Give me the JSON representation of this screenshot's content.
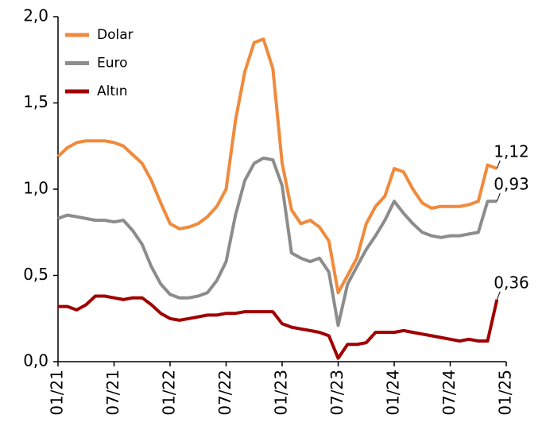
{
  "chart_data": {
    "type": "line",
    "categories": [
      "01/21",
      null,
      null,
      null,
      null,
      null,
      "07/21",
      null,
      null,
      null,
      null,
      null,
      "01/22",
      null,
      null,
      null,
      null,
      null,
      "07/22",
      null,
      null,
      null,
      null,
      null,
      "01/23",
      null,
      null,
      null,
      null,
      null,
      "07/23",
      null,
      null,
      null,
      null,
      null,
      "01/24",
      null,
      null,
      null,
      null,
      null,
      "07/24",
      null,
      null,
      null,
      null,
      null,
      "01/25"
    ],
    "series": [
      {
        "name": "Dolar",
        "color": "#f08a3c",
        "values": [
          1.19,
          1.24,
          1.27,
          1.28,
          1.28,
          1.28,
          1.27,
          1.25,
          1.2,
          1.15,
          1.05,
          0.92,
          0.8,
          0.77,
          0.78,
          0.8,
          0.84,
          0.9,
          1.0,
          1.4,
          1.68,
          1.85,
          1.87,
          1.7,
          1.15,
          0.88,
          0.8,
          0.82,
          0.78,
          0.7,
          0.4,
          0.5,
          0.6,
          0.8,
          0.9,
          0.96,
          1.12,
          1.1,
          1.0,
          0.92,
          0.89,
          0.9,
          0.9,
          0.9,
          0.91,
          0.93,
          1.14,
          1.12,
          null
        ],
        "value_labels": [
          null,
          null,
          null,
          null,
          null,
          null,
          null,
          null,
          null,
          null,
          null,
          null,
          null,
          null,
          null,
          null,
          null,
          null,
          null,
          null,
          null,
          null,
          null,
          null,
          null,
          null,
          null,
          null,
          null,
          null,
          null,
          null,
          null,
          null,
          null,
          null,
          null,
          null,
          null,
          null,
          null,
          null,
          null,
          null,
          null,
          null,
          null,
          "1,12",
          null
        ]
      },
      {
        "name": "Euro",
        "color": "#8c8c8c",
        "values": [
          0.83,
          0.85,
          0.84,
          0.83,
          0.82,
          0.82,
          0.81,
          0.82,
          0.76,
          0.68,
          0.55,
          0.45,
          0.39,
          0.37,
          0.37,
          0.38,
          0.4,
          0.47,
          0.58,
          0.85,
          1.05,
          1.15,
          1.18,
          1.17,
          1.02,
          0.63,
          0.6,
          0.58,
          0.6,
          0.52,
          0.21,
          0.45,
          0.55,
          0.65,
          0.73,
          0.82,
          0.93,
          0.86,
          0.8,
          0.75,
          0.73,
          0.72,
          0.73,
          0.73,
          0.74,
          0.75,
          0.93,
          0.93,
          null
        ],
        "value_labels": [
          null,
          null,
          null,
          null,
          null,
          null,
          null,
          null,
          null,
          null,
          null,
          null,
          null,
          null,
          null,
          null,
          null,
          null,
          null,
          null,
          null,
          null,
          null,
          null,
          null,
          null,
          null,
          null,
          null,
          null,
          null,
          null,
          null,
          null,
          null,
          null,
          null,
          null,
          null,
          null,
          null,
          null,
          null,
          null,
          null,
          null,
          null,
          "0,93",
          null
        ]
      },
      {
        "name": "Altın",
        "color": "#a00000",
        "values": [
          0.32,
          0.32,
          0.3,
          0.33,
          0.38,
          0.38,
          0.37,
          0.36,
          0.37,
          0.37,
          0.33,
          0.28,
          0.25,
          0.24,
          0.25,
          0.26,
          0.27,
          0.27,
          0.28,
          0.28,
          0.29,
          0.29,
          0.29,
          0.29,
          0.22,
          0.2,
          0.19,
          0.18,
          0.17,
          0.15,
          0.02,
          0.1,
          0.1,
          0.11,
          0.17,
          0.17,
          0.17,
          0.18,
          0.17,
          0.16,
          0.15,
          0.14,
          0.13,
          0.12,
          0.13,
          0.12,
          0.12,
          0.36,
          null
        ],
        "value_labels": [
          null,
          null,
          null,
          null,
          null,
          null,
          null,
          null,
          null,
          null,
          null,
          null,
          null,
          null,
          null,
          null,
          null,
          null,
          null,
          null,
          null,
          null,
          null,
          null,
          null,
          null,
          null,
          null,
          null,
          null,
          null,
          null,
          null,
          null,
          null,
          null,
          null,
          null,
          null,
          null,
          null,
          null,
          null,
          null,
          null,
          null,
          null,
          "0,36",
          null
        ]
      }
    ],
    "ylim": [
      0,
      2
    ],
    "yticks": [
      {
        "value": 0,
        "label": "0,0"
      },
      {
        "value": 0.5,
        "label": "0,5"
      },
      {
        "value": 1,
        "label": "1,0"
      },
      {
        "value": 1.5,
        "label": "1,5"
      },
      {
        "value": 2,
        "label": "2,0"
      }
    ],
    "grid": false,
    "legend": "top-left"
  }
}
